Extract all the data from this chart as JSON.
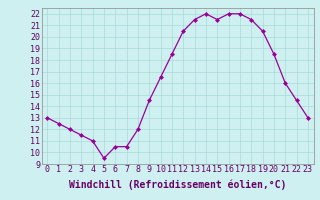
{
  "x": [
    0,
    1,
    2,
    3,
    4,
    5,
    6,
    7,
    8,
    9,
    10,
    11,
    12,
    13,
    14,
    15,
    16,
    17,
    18,
    19,
    20,
    21,
    22,
    23
  ],
  "y": [
    13,
    12.5,
    12,
    11.5,
    11,
    9.5,
    10.5,
    10.5,
    12,
    14.5,
    16.5,
    18.5,
    20.5,
    21.5,
    22,
    21.5,
    22,
    22,
    21.5,
    20.5,
    18.5,
    16,
    14.5,
    13
  ],
  "line_color": "#990099",
  "marker": "D",
  "marker_size": 2,
  "bg_color": "#cff0f0",
  "grid_color": "#aadada",
  "xlabel": "Windchill (Refroidissement éolien,°C)",
  "ylim": [
    9,
    22.5
  ],
  "xlim": [
    -0.5,
    23.5
  ],
  "yticks": [
    9,
    10,
    11,
    12,
    13,
    14,
    15,
    16,
    17,
    18,
    19,
    20,
    21,
    22
  ],
  "xticks": [
    0,
    1,
    2,
    3,
    4,
    5,
    6,
    7,
    8,
    9,
    10,
    11,
    12,
    13,
    14,
    15,
    16,
    17,
    18,
    19,
    20,
    21,
    22,
    23
  ],
  "xlabel_fontsize": 7,
  "tick_fontsize": 6
}
